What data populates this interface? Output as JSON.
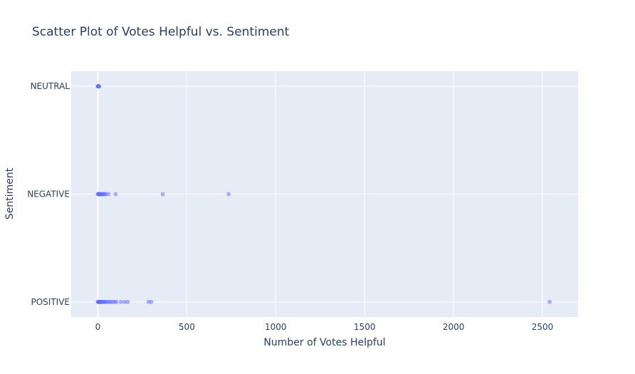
{
  "chart_data": {
    "type": "scatter",
    "title": "Scatter Plot of Votes Helpful vs. Sentiment",
    "xlabel": "Number of Votes Helpful",
    "ylabel": "Sentiment",
    "xlim": [
      -150,
      2700
    ],
    "x_ticks": [
      0,
      500,
      1000,
      1500,
      2000,
      2500
    ],
    "categories": [
      "POSITIVE",
      "NEGATIVE",
      "NEUTRAL"
    ],
    "grid": true,
    "marker_color": "#636efa",
    "marker_opacity": 0.5,
    "series": [
      {
        "values": [
          {
            "x": 0,
            "y": "NEUTRAL"
          },
          {
            "x": 1,
            "y": "NEUTRAL"
          },
          {
            "x": 2,
            "y": "NEUTRAL"
          },
          {
            "x": 3,
            "y": "NEUTRAL"
          },
          {
            "x": 5,
            "y": "NEUTRAL"
          },
          {
            "x": 7,
            "y": "NEUTRAL"
          },
          {
            "x": 0,
            "y": "NEGATIVE"
          },
          {
            "x": 2,
            "y": "NEGATIVE"
          },
          {
            "x": 4,
            "y": "NEGATIVE"
          },
          {
            "x": 6,
            "y": "NEGATIVE"
          },
          {
            "x": 8,
            "y": "NEGATIVE"
          },
          {
            "x": 11,
            "y": "NEGATIVE"
          },
          {
            "x": 14,
            "y": "NEGATIVE"
          },
          {
            "x": 17,
            "y": "NEGATIVE"
          },
          {
            "x": 20,
            "y": "NEGATIVE"
          },
          {
            "x": 24,
            "y": "NEGATIVE"
          },
          {
            "x": 28,
            "y": "NEGATIVE"
          },
          {
            "x": 33,
            "y": "NEGATIVE"
          },
          {
            "x": 38,
            "y": "NEGATIVE"
          },
          {
            "x": 45,
            "y": "NEGATIVE"
          },
          {
            "x": 60,
            "y": "NEGATIVE"
          },
          {
            "x": 100,
            "y": "NEGATIVE"
          },
          {
            "x": 365,
            "y": "NEGATIVE"
          },
          {
            "x": 735,
            "y": "NEGATIVE"
          },
          {
            "x": 0,
            "y": "POSITIVE"
          },
          {
            "x": 2,
            "y": "POSITIVE"
          },
          {
            "x": 4,
            "y": "POSITIVE"
          },
          {
            "x": 6,
            "y": "POSITIVE"
          },
          {
            "x": 9,
            "y": "POSITIVE"
          },
          {
            "x": 12,
            "y": "POSITIVE"
          },
          {
            "x": 15,
            "y": "POSITIVE"
          },
          {
            "x": 19,
            "y": "POSITIVE"
          },
          {
            "x": 23,
            "y": "POSITIVE"
          },
          {
            "x": 27,
            "y": "POSITIVE"
          },
          {
            "x": 32,
            "y": "POSITIVE"
          },
          {
            "x": 37,
            "y": "POSITIVE"
          },
          {
            "x": 43,
            "y": "POSITIVE"
          },
          {
            "x": 50,
            "y": "POSITIVE"
          },
          {
            "x": 58,
            "y": "POSITIVE"
          },
          {
            "x": 66,
            "y": "POSITIVE"
          },
          {
            "x": 75,
            "y": "POSITIVE"
          },
          {
            "x": 85,
            "y": "POSITIVE"
          },
          {
            "x": 95,
            "y": "POSITIVE"
          },
          {
            "x": 105,
            "y": "POSITIVE"
          },
          {
            "x": 130,
            "y": "POSITIVE"
          },
          {
            "x": 150,
            "y": "POSITIVE"
          },
          {
            "x": 168,
            "y": "POSITIVE"
          },
          {
            "x": 285,
            "y": "POSITIVE"
          },
          {
            "x": 300,
            "y": "POSITIVE"
          },
          {
            "x": 2540,
            "y": "POSITIVE"
          }
        ]
      }
    ]
  }
}
